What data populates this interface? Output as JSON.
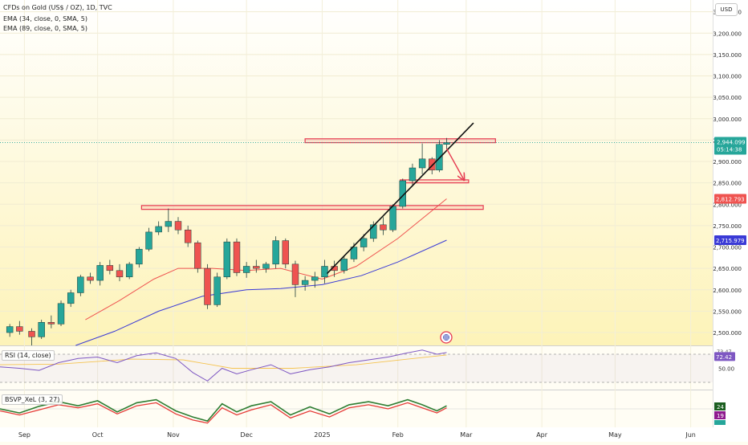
{
  "header": {
    "title": "CFDs on Gold (US$ / OZ), 1D, TVC",
    "ema34": "EMA (34, close, 0, SMA, 5)",
    "ema89": "EMA (89, close, 0, SMA, 5)",
    "currency": "USD"
  },
  "price_axis": {
    "ticks": [
      "2,500.000",
      "2,550.000",
      "2,600.000",
      "2,650.000",
      "2,700.000",
      "2,750.000",
      "2,800.000",
      "2,850.000",
      "2,900.000",
      "2,950.000",
      "3,000.000",
      "3,050.000",
      "3,100.000",
      "3,150.000",
      "3,200.000",
      "3,250.000"
    ],
    "last_price_label": "2,944.099",
    "countdown": "05:14:38",
    "ema34_label": "2,812.793",
    "ema89_label": "2,715.979"
  },
  "rsi_pane": {
    "label": "RSI (14, close)",
    "value_label": "72.42",
    "top_label": "73.47",
    "mid_label": "50.00"
  },
  "bsvp_pane": {
    "label": "BSVP_XeL (3, 27)",
    "value_top": "24",
    "value_bottom": "19"
  },
  "time_axis": {
    "labels": [
      "Sep",
      "Oct",
      "Nov",
      "Dec",
      "2025",
      "Feb",
      "Mar",
      "Apr",
      "May",
      "Jun"
    ]
  },
  "colors": {
    "up": "#26a69a",
    "down": "#ef5350",
    "ema34": "#ef5350",
    "ema89": "#3a3ad6",
    "rsi": "#7e57c2",
    "zone": "#e53950",
    "last_price": "#26a69a",
    "background": "#fffdf0"
  },
  "chart_data": {
    "type": "candlestick",
    "title": "CFDs on Gold (US$ / OZ), 1D, TVC",
    "x_range": [
      "2024-08-22",
      "2025-06-10"
    ],
    "y_range": [
      2470,
      3270
    ],
    "candles": [
      [
        "2024-08-26",
        2500,
        2520,
        2490,
        2514
      ],
      [
        "2024-08-30",
        2514,
        2527,
        2495,
        2503
      ],
      [
        "2024-09-04",
        2503,
        2510,
        2470,
        2490
      ],
      [
        "2024-09-08",
        2490,
        2530,
        2485,
        2524
      ],
      [
        "2024-09-12",
        2524,
        2540,
        2510,
        2520
      ],
      [
        "2024-09-16",
        2520,
        2575,
        2515,
        2568
      ],
      [
        "2024-09-20",
        2568,
        2600,
        2560,
        2593
      ],
      [
        "2024-09-24",
        2593,
        2635,
        2585,
        2630
      ],
      [
        "2024-09-28",
        2630,
        2640,
        2614,
        2622
      ],
      [
        "2024-10-02",
        2622,
        2665,
        2610,
        2657
      ],
      [
        "2024-10-06",
        2657,
        2670,
        2636,
        2645
      ],
      [
        "2024-10-10",
        2645,
        2660,
        2620,
        2630
      ],
      [
        "2024-10-14",
        2630,
        2665,
        2625,
        2660
      ],
      [
        "2024-10-18",
        2660,
        2700,
        2652,
        2695
      ],
      [
        "2024-10-22",
        2695,
        2745,
        2690,
        2735
      ],
      [
        "2024-10-26",
        2735,
        2760,
        2728,
        2748
      ],
      [
        "2024-10-30",
        2748,
        2790,
        2735,
        2760
      ],
      [
        "2024-11-03",
        2760,
        2770,
        2730,
        2740
      ],
      [
        "2024-11-07",
        2740,
        2750,
        2700,
        2710
      ],
      [
        "2024-11-11",
        2710,
        2715,
        2640,
        2650
      ],
      [
        "2024-11-15",
        2650,
        2660,
        2555,
        2565
      ],
      [
        "2024-11-19",
        2565,
        2640,
        2560,
        2630
      ],
      [
        "2024-11-23",
        2630,
        2720,
        2625,
        2712
      ],
      [
        "2024-11-27",
        2712,
        2720,
        2632,
        2640
      ],
      [
        "2024-12-01",
        2640,
        2665,
        2628,
        2655
      ],
      [
        "2024-12-05",
        2655,
        2670,
        2640,
        2650
      ],
      [
        "2024-12-09",
        2650,
        2665,
        2640,
        2660
      ],
      [
        "2024-12-13",
        2660,
        2725,
        2650,
        2715
      ],
      [
        "2024-12-17",
        2715,
        2720,
        2650,
        2660
      ],
      [
        "2024-12-21",
        2660,
        2668,
        2583,
        2612
      ],
      [
        "2024-12-25",
        2612,
        2632,
        2598,
        2622
      ],
      [
        "2024-12-29",
        2622,
        2642,
        2605,
        2630
      ],
      [
        "2025-01-02",
        2630,
        2670,
        2615,
        2655
      ],
      [
        "2025-01-06",
        2655,
        2668,
        2630,
        2645
      ],
      [
        "2025-01-10",
        2645,
        2680,
        2638,
        2672
      ],
      [
        "2025-01-14",
        2672,
        2710,
        2665,
        2700
      ],
      [
        "2025-01-18",
        2700,
        2730,
        2690,
        2720
      ],
      [
        "2025-01-22",
        2720,
        2760,
        2712,
        2752
      ],
      [
        "2025-01-26",
        2752,
        2770,
        2728,
        2740
      ],
      [
        "2025-01-30",
        2740,
        2800,
        2735,
        2795
      ],
      [
        "2025-02-03",
        2795,
        2860,
        2790,
        2855
      ],
      [
        "2025-02-07",
        2855,
        2895,
        2845,
        2885
      ],
      [
        "2025-02-11",
        2885,
        2942,
        2870,
        2906
      ],
      [
        "2025-02-15",
        2906,
        2910,
        2870,
        2880
      ],
      [
        "2025-02-18",
        2880,
        2950,
        2875,
        2940
      ],
      [
        "2025-02-21",
        2940,
        2955,
        2928,
        2944
      ]
    ],
    "series": [
      {
        "name": "EMA (34, close, 0, SMA, 5)",
        "points": [
          [
            "2024-09-26",
            2530
          ],
          [
            "2024-10-10",
            2575
          ],
          [
            "2024-10-24",
            2625
          ],
          [
            "2024-11-03",
            2650
          ],
          [
            "2024-11-17",
            2650
          ],
          [
            "2024-12-01",
            2645
          ],
          [
            "2024-12-15",
            2650
          ],
          [
            "2025-01-01",
            2625
          ],
          [
            "2025-01-15",
            2655
          ],
          [
            "2025-02-01",
            2720
          ],
          [
            "2025-02-21",
            2812.793
          ]
        ]
      },
      {
        "name": "EMA (89, close, 0, SMA, 5)",
        "points": [
          [
            "2024-09-22",
            2470
          ],
          [
            "2024-10-08",
            2503
          ],
          [
            "2024-10-26",
            2550
          ],
          [
            "2024-11-13",
            2585
          ],
          [
            "2024-12-01",
            2600
          ],
          [
            "2024-12-15",
            2603
          ],
          [
            "2025-01-01",
            2612
          ],
          [
            "2025-01-17",
            2633
          ],
          [
            "2025-02-01",
            2665
          ],
          [
            "2025-02-21",
            2715.979
          ]
        ]
      }
    ],
    "zones": [
      {
        "x1": "2024-12-25",
        "x2": "2025-03-13",
        "y1": 2953,
        "y2": 2944
      },
      {
        "x1": "2025-02-02",
        "x2": "2025-03-02",
        "y1": 2857,
        "y2": 2850
      },
      {
        "x1": "2024-10-19",
        "x2": "2025-03-08",
        "y1": 2797,
        "y2": 2788
      }
    ],
    "trendline": {
      "x1": "2025-01-03",
      "y1": 2638,
      "x2": "2025-03-04",
      "y2": 2990
    },
    "arrow": {
      "x1": "2025-02-21",
      "y1": 2930,
      "x2": "2025-02-28",
      "y2": 2858
    },
    "last_price": 2944.099,
    "rsi": {
      "ylim": [
        22,
        78
      ],
      "overbought": 70,
      "oversold": 30,
      "values": [
        [
          "2024-08-22",
          52
        ],
        [
          "2024-08-30",
          50
        ],
        [
          "2024-09-07",
          47
        ],
        [
          "2024-09-15",
          58
        ],
        [
          "2024-09-23",
          64
        ],
        [
          "2024-10-01",
          66
        ],
        [
          "2024-10-09",
          58
        ],
        [
          "2024-10-17",
          68
        ],
        [
          "2024-10-25",
          72
        ],
        [
          "2024-11-02",
          64
        ],
        [
          "2024-11-09",
          44
        ],
        [
          "2024-11-15",
          32
        ],
        [
          "2024-11-21",
          50
        ],
        [
          "2024-11-27",
          42
        ],
        [
          "2024-12-03",
          48
        ],
        [
          "2024-12-11",
          55
        ],
        [
          "2024-12-19",
          42
        ],
        [
          "2024-12-27",
          48
        ],
        [
          "2025-01-04",
          52
        ],
        [
          "2025-01-12",
          58
        ],
        [
          "2025-01-20",
          62
        ],
        [
          "2025-01-28",
          66
        ],
        [
          "2025-02-05",
          72
        ],
        [
          "2025-02-11",
          76
        ],
        [
          "2025-02-17",
          70
        ],
        [
          "2025-02-21",
          72.42
        ]
      ],
      "ma_values": [
        [
          "2024-08-22",
          55
        ],
        [
          "2024-09-15",
          56
        ],
        [
          "2024-10-15",
          63
        ],
        [
          "2024-11-05",
          62
        ],
        [
          "2024-11-25",
          50
        ],
        [
          "2024-12-20",
          50
        ],
        [
          "2025-01-15",
          55
        ],
        [
          "2025-02-05",
          63
        ],
        [
          "2025-02-21",
          69
        ]
      ]
    },
    "bsvp": {
      "ylim": [
        -30,
        30
      ],
      "green": [
        [
          "2024-08-22",
          0
        ],
        [
          "2024-08-30",
          -8
        ],
        [
          "2024-09-07",
          5
        ],
        [
          "2024-09-15",
          14
        ],
        [
          "2024-09-23",
          6
        ],
        [
          "2024-10-01",
          16
        ],
        [
          "2024-10-09",
          -6
        ],
        [
          "2024-10-17",
          12
        ],
        [
          "2024-10-25",
          18
        ],
        [
          "2024-11-02",
          -4
        ],
        [
          "2024-11-09",
          -16
        ],
        [
          "2024-11-15",
          -24
        ],
        [
          "2024-11-21",
          10
        ],
        [
          "2024-11-27",
          -6
        ],
        [
          "2024-12-03",
          6
        ],
        [
          "2024-12-11",
          14
        ],
        [
          "2024-12-19",
          -12
        ],
        [
          "2024-12-27",
          4
        ],
        [
          "2025-01-04",
          -10
        ],
        [
          "2025-01-12",
          8
        ],
        [
          "2025-01-20",
          14
        ],
        [
          "2025-01-28",
          6
        ],
        [
          "2025-02-05",
          18
        ],
        [
          "2025-02-11",
          8
        ],
        [
          "2025-02-17",
          -4
        ],
        [
          "2025-02-21",
          6
        ]
      ],
      "red": [
        [
          "2024-08-22",
          -4
        ],
        [
          "2024-08-30",
          -12
        ],
        [
          "2024-09-07",
          -2
        ],
        [
          "2024-09-15",
          8
        ],
        [
          "2024-09-23",
          2
        ],
        [
          "2024-10-01",
          10
        ],
        [
          "2024-10-09",
          -10
        ],
        [
          "2024-10-17",
          6
        ],
        [
          "2024-10-25",
          12
        ],
        [
          "2024-11-02",
          -10
        ],
        [
          "2024-11-09",
          -22
        ],
        [
          "2024-11-15",
          -28
        ],
        [
          "2024-11-21",
          2
        ],
        [
          "2024-11-27",
          -12
        ],
        [
          "2024-12-03",
          -2
        ],
        [
          "2024-12-11",
          8
        ],
        [
          "2024-12-19",
          -18
        ],
        [
          "2024-12-27",
          -4
        ],
        [
          "2025-01-04",
          -16
        ],
        [
          "2025-01-12",
          2
        ],
        [
          "2025-01-20",
          8
        ],
        [
          "2025-01-28",
          0
        ],
        [
          "2025-02-05",
          12
        ],
        [
          "2025-02-11",
          2
        ],
        [
          "2025-02-17",
          -8
        ],
        [
          "2025-02-21",
          2
        ]
      ],
      "value_top": 24,
      "value_bottom": 19
    }
  }
}
